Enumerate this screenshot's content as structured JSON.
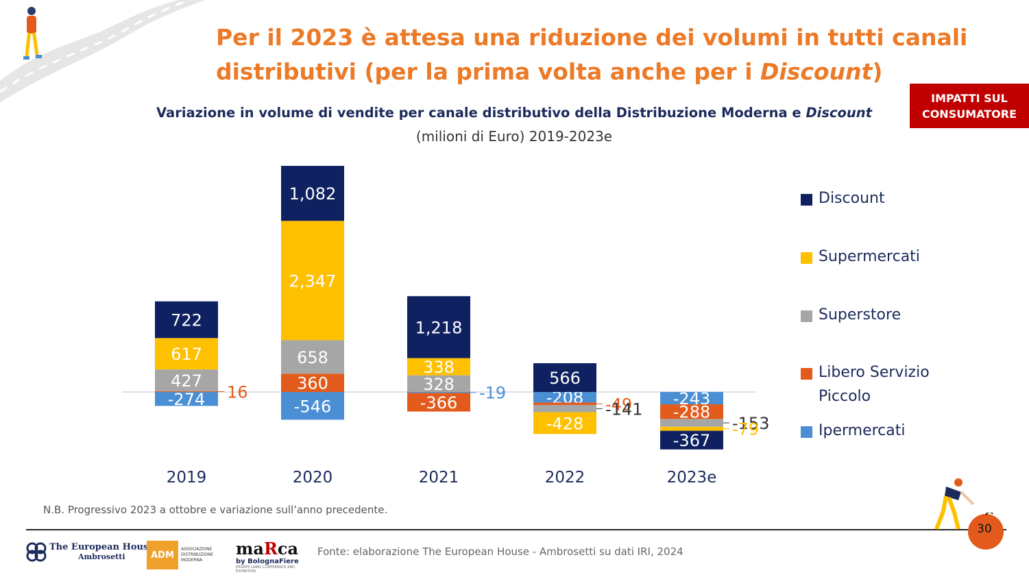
{
  "header": {
    "title_line1": "Per il 2023 è attesa una riduzione dei volumi in tutti canali",
    "title_line2_prefix": "distributivi (per la prima volta anche per i ",
    "title_line2_italic": "Discount",
    "title_line2_suffix": ")",
    "badge_line1": "IMPATTI SUL",
    "badge_line2": "CONSUMATORE"
  },
  "chart_header": {
    "title_prefix": "Variazione in volume di vendite per canale distributivo della Distribuzione Moderna e ",
    "title_italic": "Discount",
    "unit": "(milioni di Euro) 2019-2023e"
  },
  "chart_data": {
    "type": "bar",
    "stacked": true,
    "categories": [
      "2019",
      "2020",
      "2021",
      "2022",
      "2023e"
    ],
    "series": [
      {
        "name": "Ipermercati",
        "values": [
          -274,
          -546,
          -19,
          -208,
          -243
        ]
      },
      {
        "name": "Libero Servizio Piccolo",
        "values": [
          16,
          360,
          -366,
          -49,
          -288
        ]
      },
      {
        "name": "Superstore",
        "values": [
          427,
          658,
          328,
          -141,
          -153
        ]
      },
      {
        "name": "Supermercati",
        "values": [
          617,
          2347,
          338,
          -428,
          -79
        ]
      },
      {
        "name": "Discount",
        "values": [
          722,
          1082,
          1218,
          566,
          -367
        ]
      }
    ],
    "colors": {
      "Discount": "#0f2160",
      "Supermercati": "#ffc000",
      "Superstore": "#a6a6a6",
      "Libero Servizio Piccolo": "#e35b1c",
      "Ipermercati": "#4a8fd4"
    },
    "legend_position": "right",
    "grid": false
  },
  "legend": [
    {
      "label": "Discount",
      "color": "#0f2160"
    },
    {
      "label": "Supermercati",
      "color": "#ffc000"
    },
    {
      "label": "Superstore",
      "color": "#a6a6a6"
    },
    {
      "label": "Libero Servizio Piccolo",
      "color": "#e35b1c"
    },
    {
      "label": "Ipermercati",
      "color": "#4a8fd4"
    }
  ],
  "footer": {
    "note": "N.B. Progressivo 2023 a ottobre e variazione sull’anno precedente.",
    "source": "Fonte: elaborazione The European House - Ambrosetti su dati IRI, 2024",
    "page_number": "30",
    "logo_teh_1": "The European House",
    "logo_teh_2": "Ambrosetti",
    "logo_adm": "ADM",
    "logo_adm_text": "ASSOCIAZIONE DISTRIBUZIONE MODERNA",
    "logo_marca_a": "ma",
    "logo_marca_r": "R",
    "logo_marca_b": "ca",
    "logo_marca_sub": "by BolognaFiere",
    "logo_marca_tag": "PRIVATE LABEL CONFERENCE AND EXHIBITION"
  }
}
